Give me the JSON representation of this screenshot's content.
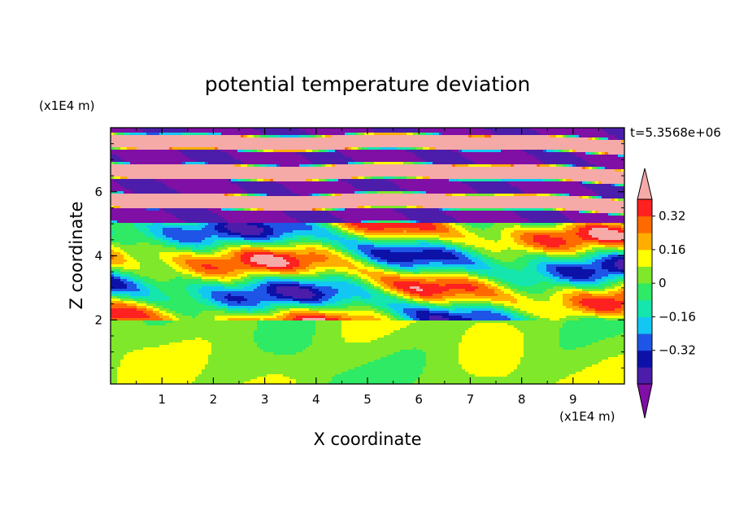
{
  "chart_data": {
    "type": "heatmap",
    "title": "potential temperature deviation",
    "xlabel": "X coordinate",
    "ylabel": "Z coordinate",
    "x_unit": "(x1E4 m)",
    "y_unit": "(x1E4 m)",
    "time_label": "t=5.3568e+06",
    "xlim": [
      0,
      10
    ],
    "ylim": [
      0,
      8
    ],
    "x_ticks": [
      1,
      2,
      3,
      4,
      5,
      6,
      7,
      8,
      9
    ],
    "y_ticks": [
      2,
      4,
      6
    ],
    "colorbar": {
      "levels": [
        -0.48,
        -0.4,
        -0.32,
        -0.24,
        -0.16,
        -0.08,
        0,
        0.08,
        0.16,
        0.24,
        0.32,
        0.4,
        0.48
      ],
      "colors": [
        "#7f0fa5",
        "#4b1daa",
        "#0c11a8",
        "#1e55e6",
        "#12c8f2",
        "#14e6ad",
        "#2eea64",
        "#7fe82a",
        "#ffff00",
        "#ffae00",
        "#ff6a00",
        "#ff2020",
        "#f5aaa8"
      ],
      "labeled_ticks": [
        0.32,
        0.16,
        0,
        -0.16,
        -0.32
      ],
      "tick_labels": [
        "0.32",
        "0.16",
        "0",
        "−0.16",
        "−0.32"
      ],
      "extend": "both"
    }
  }
}
